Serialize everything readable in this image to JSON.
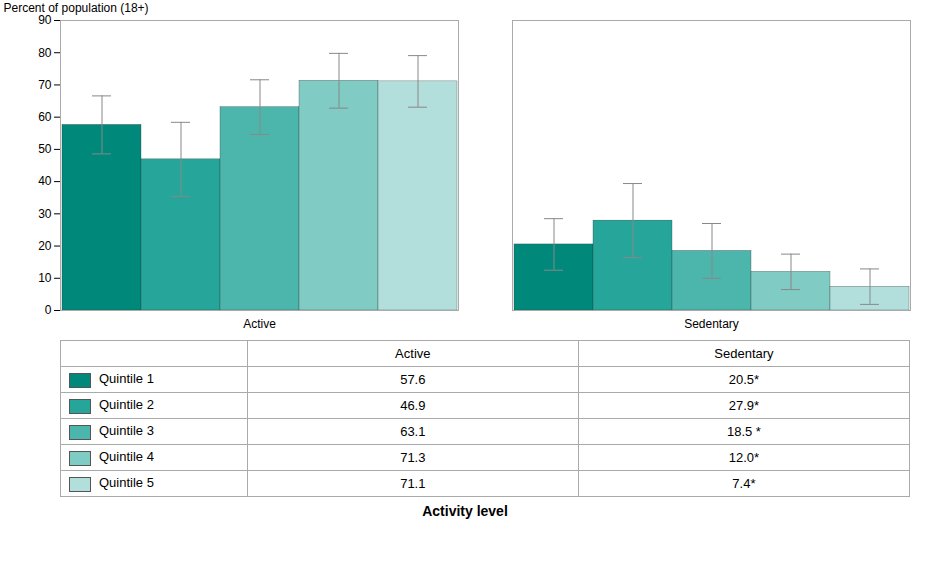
{
  "chart_data": {
    "type": "bar",
    "categories": [
      "Active",
      "Sedentary"
    ],
    "xlabel": "Activity level",
    "ylabel": "Percent of population (18+)",
    "ylim": [
      0,
      90
    ],
    "yticks": [
      0,
      10,
      20,
      30,
      40,
      50,
      60,
      70,
      80,
      90
    ],
    "grid": false,
    "series": [
      {
        "name": "Quintile 1",
        "color": "#00897B",
        "values": [
          57.6,
          20.5
        ],
        "errors": [
          9.0,
          8.0
        ],
        "value_labels": [
          "57.6",
          "20.5*"
        ]
      },
      {
        "name": "Quintile 2",
        "color": "#26A69A",
        "values": [
          46.9,
          27.9
        ],
        "errors": [
          11.5,
          11.5
        ],
        "value_labels": [
          "46.9",
          "27.9*"
        ]
      },
      {
        "name": "Quintile 3",
        "color": "#4DB6AC",
        "values": [
          63.1,
          18.5
        ],
        "errors": [
          8.5,
          8.5
        ],
        "value_labels": [
          "63.1",
          "18.5 *"
        ]
      },
      {
        "name": "Quintile 4",
        "color": "#80CBC4",
        "values": [
          71.3,
          12.0
        ],
        "errors": [
          8.5,
          5.5
        ],
        "value_labels": [
          "71.3",
          "12.0*"
        ]
      },
      {
        "name": "Quintile 5",
        "color": "#B2DFDB",
        "values": [
          71.1,
          7.4
        ],
        "errors": [
          8.0,
          5.5
        ],
        "value_labels": [
          "71.1",
          "7.4*"
        ]
      }
    ]
  }
}
